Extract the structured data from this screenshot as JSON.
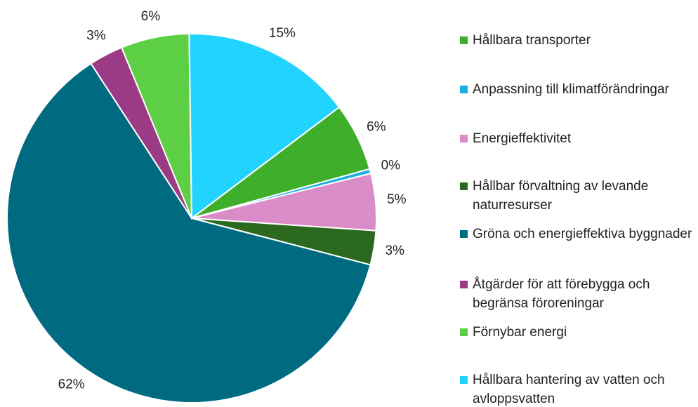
{
  "chart_data": {
    "type": "pie",
    "categories": [
      "Hållbara transporter",
      "Anpassning till klimatförändringar",
      "Energieffektivitet",
      "Hållbar förvaltning av levande naturresurser",
      "Gröna och energieffektiva byggnader",
      "Åtgärder för att förebygga och begränsa föroreningar",
      "Förnybar energi",
      "Hållbara hantering av vatten och avloppsvatten"
    ],
    "values": [
      6,
      0.4,
      5,
      3,
      62,
      3,
      6,
      15
    ],
    "value_labels": [
      "6%",
      "0%",
      "5%",
      "3%",
      "62%",
      "3%",
      "6%",
      "15%"
    ],
    "colors": [
      "#3fae2a",
      "#1aaee0",
      "#d98cc8",
      "#2b6a1e",
      "#006b80",
      "#9b3a85",
      "#5ccf44",
      "#22d3ff"
    ],
    "legend": "right"
  }
}
